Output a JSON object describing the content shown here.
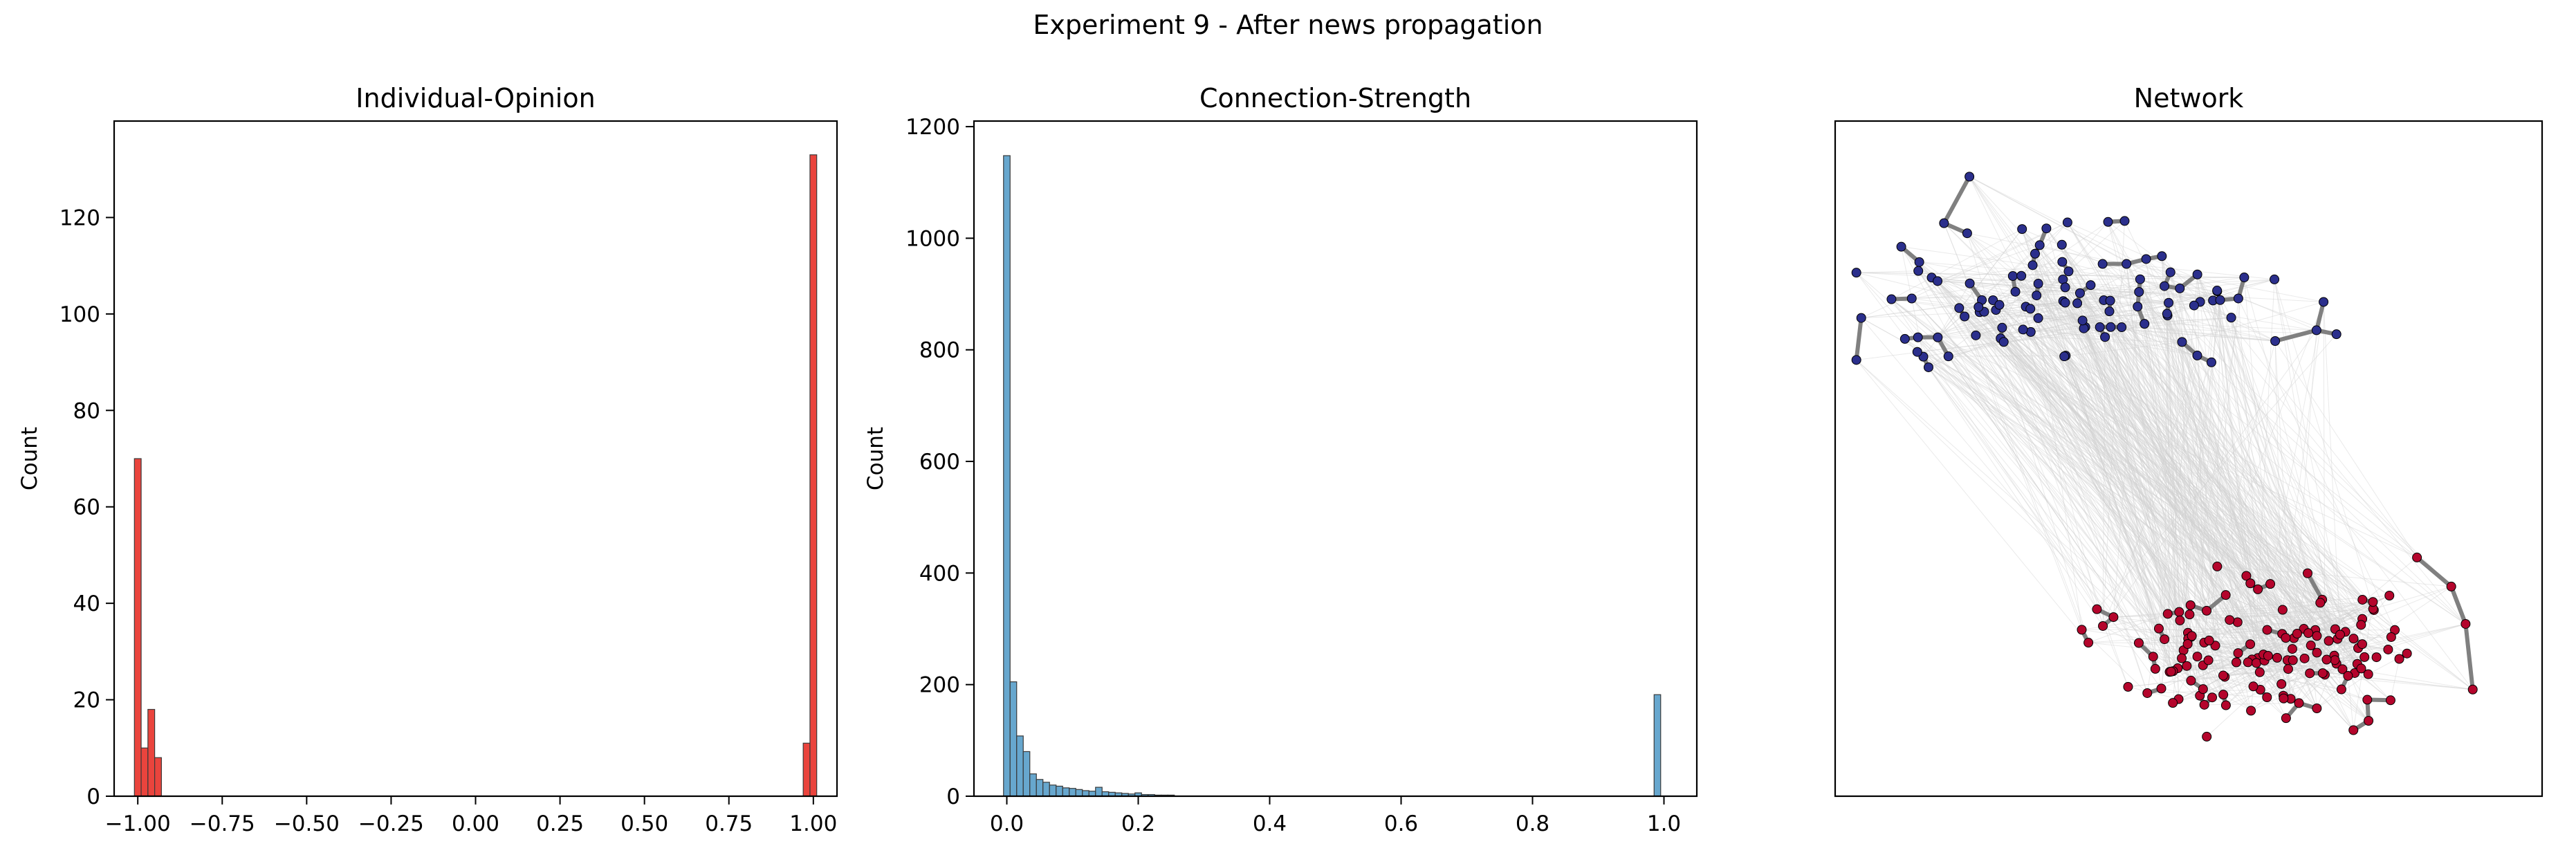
{
  "figure_title": "Experiment 9 - After news propagation",
  "colors": {
    "opinion_bar": "#e8342c",
    "strength_bar": "#5a9fca",
    "node_negative": "#2b2f8c",
    "node_positive": "#b4052c",
    "edge_strong": "#808080",
    "edge_weak": "#d0d0d0"
  },
  "chart_data": [
    {
      "type": "bar",
      "title": "Individual-Opinion",
      "xlabel": "",
      "ylabel": "Count",
      "xlim": [
        -1.07,
        1.07
      ],
      "ylim": [
        0,
        140
      ],
      "xticks": [
        -1.0,
        -0.75,
        -0.5,
        -0.25,
        0.0,
        0.25,
        0.5,
        0.75,
        1.0
      ],
      "xtick_labels": [
        "−1.00",
        "−0.75",
        "−0.50",
        "−0.25",
        "0.00",
        "0.25",
        "0.50",
        "0.75",
        "1.00"
      ],
      "yticks": [
        0,
        20,
        40,
        60,
        80,
        100,
        120
      ],
      "ytick_labels": [
        "0",
        "20",
        "40",
        "60",
        "80",
        "100",
        "120"
      ],
      "bin_width": 0.02,
      "bins": [
        {
          "x": -1.0,
          "count": 70
        },
        {
          "x": -0.98,
          "count": 10
        },
        {
          "x": -0.96,
          "count": 18
        },
        {
          "x": -0.94,
          "count": 8
        },
        {
          "x": 0.98,
          "count": 11
        },
        {
          "x": 1.0,
          "count": 133
        }
      ],
      "grid": false
    },
    {
      "type": "bar",
      "title": "Connection-Strength",
      "xlabel": "",
      "ylabel": "Count",
      "xlim": [
        -0.05,
        1.05
      ],
      "ylim": [
        0,
        1210
      ],
      "xticks": [
        0.0,
        0.2,
        0.4,
        0.6,
        0.8,
        1.0
      ],
      "xtick_labels": [
        "0.0",
        "0.2",
        "0.4",
        "0.6",
        "0.8",
        "1.0"
      ],
      "yticks": [
        0,
        200,
        400,
        600,
        800,
        1000,
        1200
      ],
      "ytick_labels": [
        "0",
        "200",
        "400",
        "600",
        "800",
        "1000",
        "1200"
      ],
      "bin_width": 0.01,
      "bins": [
        {
          "x": 0.0,
          "count": 1148
        },
        {
          "x": 0.01,
          "count": 205
        },
        {
          "x": 0.02,
          "count": 108
        },
        {
          "x": 0.03,
          "count": 80
        },
        {
          "x": 0.04,
          "count": 40
        },
        {
          "x": 0.05,
          "count": 30
        },
        {
          "x": 0.06,
          "count": 25
        },
        {
          "x": 0.07,
          "count": 20
        },
        {
          "x": 0.08,
          "count": 18
        },
        {
          "x": 0.09,
          "count": 15
        },
        {
          "x": 0.1,
          "count": 14
        },
        {
          "x": 0.11,
          "count": 12
        },
        {
          "x": 0.12,
          "count": 10
        },
        {
          "x": 0.13,
          "count": 9
        },
        {
          "x": 0.14,
          "count": 16
        },
        {
          "x": 0.15,
          "count": 8
        },
        {
          "x": 0.16,
          "count": 7
        },
        {
          "x": 0.17,
          "count": 6
        },
        {
          "x": 0.18,
          "count": 5
        },
        {
          "x": 0.19,
          "count": 4
        },
        {
          "x": 0.2,
          "count": 6
        },
        {
          "x": 0.21,
          "count": 3
        },
        {
          "x": 0.22,
          "count": 3
        },
        {
          "x": 0.23,
          "count": 2
        },
        {
          "x": 0.24,
          "count": 2
        },
        {
          "x": 0.25,
          "count": 2
        },
        {
          "x": 0.99,
          "count": 182
        }
      ],
      "grid": false
    },
    {
      "type": "network",
      "title": "Network",
      "axes": false,
      "xlim": [
        0,
        1
      ],
      "ylim": [
        0,
        1
      ],
      "groups": [
        {
          "color_key": "node_negative",
          "count": 106,
          "center": [
            0.33,
            0.74
          ],
          "spread": [
            0.33,
            0.1
          ]
        },
        {
          "color_key": "node_positive",
          "count": 144,
          "center": [
            0.61,
            0.22
          ],
          "spread": [
            0.23,
            0.1
          ]
        }
      ]
    }
  ]
}
